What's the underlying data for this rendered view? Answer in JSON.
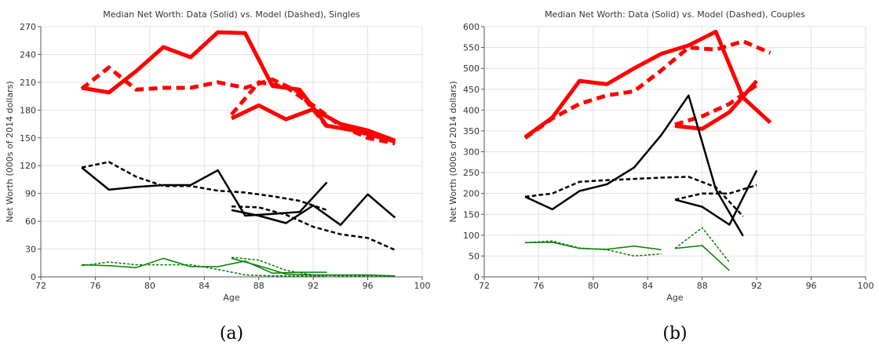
{
  "captions": [
    "(a)",
    "(b)"
  ],
  "colors": {
    "red": "#ff0000",
    "black": "#000000",
    "green": "#008000"
  },
  "chart_data": [
    {
      "type": "line",
      "title": "Median Net Worth: Data (Solid) vs. Model (Dashed), Singles",
      "xlabel": "Age",
      "ylabel": "Net Worth (000s of 2014 dollars)",
      "xlim": [
        72,
        100
      ],
      "ylim": [
        0,
        270
      ],
      "xticks": [
        72,
        76,
        80,
        84,
        88,
        92,
        96,
        100
      ],
      "yticks": [
        0,
        30,
        60,
        90,
        120,
        150,
        180,
        210,
        240,
        270
      ],
      "grid": true,
      "series": [
        {
          "color": "red",
          "style": "solid",
          "width": 5,
          "x": [
            75,
            77,
            79,
            81,
            83,
            85,
            87,
            89,
            91,
            93,
            95,
            98
          ],
          "y": [
            204,
            199,
            222,
            248,
            237,
            264,
            263,
            206,
            202,
            163,
            158,
            146
          ]
        },
        {
          "color": "red",
          "style": "dashed",
          "width": 5,
          "x": [
            75,
            77,
            79,
            81,
            83,
            85,
            87,
            89,
            91,
            93
          ],
          "y": [
            203,
            226,
            202,
            204,
            204,
            210,
            204,
            213,
            199,
            162
          ]
        },
        {
          "color": "red",
          "style": "solid",
          "width": 5,
          "x": [
            86,
            88,
            90,
            92,
            94,
            96,
            98
          ],
          "y": [
            171,
            185,
            170,
            181,
            165,
            158,
            147
          ]
        },
        {
          "color": "red",
          "style": "dashed",
          "width": 5,
          "x": [
            86,
            88,
            90,
            92,
            94,
            96,
            98
          ],
          "y": [
            175,
            210,
            205,
            185,
            163,
            150,
            144
          ]
        },
        {
          "color": "black",
          "style": "solid",
          "width": 2.5,
          "x": [
            75,
            77,
            79,
            81,
            83,
            85,
            87,
            89,
            91,
            93
          ],
          "y": [
            118,
            94,
            97,
            99,
            99,
            115,
            66,
            68,
            70,
            102
          ]
        },
        {
          "color": "black",
          "style": "dashed",
          "width": 2.5,
          "x": [
            75,
            77,
            79,
            81,
            83,
            85,
            87,
            89,
            91,
            93
          ],
          "y": [
            118,
            124,
            108,
            98,
            98,
            93,
            91,
            87,
            82,
            72
          ]
        },
        {
          "color": "black",
          "style": "solid",
          "width": 2.5,
          "x": [
            86,
            88,
            90,
            92,
            94,
            96,
            98
          ],
          "y": [
            72,
            66,
            58,
            77,
            56,
            89,
            64
          ]
        },
        {
          "color": "black",
          "style": "dashed",
          "width": 2.5,
          "x": [
            86,
            88,
            90,
            92,
            94,
            96,
            98
          ],
          "y": [
            76,
            75,
            67,
            54,
            46,
            42,
            29
          ]
        },
        {
          "color": "green",
          "style": "solid",
          "width": 1.5,
          "x": [
            75,
            77,
            79,
            81,
            83,
            85,
            87,
            89,
            91,
            93
          ],
          "y": [
            13,
            12,
            10,
            20,
            11,
            11,
            17,
            4,
            5,
            5
          ]
        },
        {
          "color": "green",
          "style": "dashed",
          "width": 1.5,
          "x": [
            75,
            77,
            79,
            81,
            83,
            85,
            87,
            89,
            91,
            93
          ],
          "y": [
            12,
            16,
            13,
            13,
            13,
            8,
            2,
            1,
            1,
            1
          ]
        },
        {
          "color": "green",
          "style": "solid",
          "width": 1.5,
          "x": [
            86,
            88,
            90,
            92,
            94,
            96,
            98
          ],
          "y": [
            20,
            12,
            3,
            2,
            2,
            2,
            1
          ]
        },
        {
          "color": "green",
          "style": "dashed",
          "width": 1.5,
          "x": [
            86,
            88,
            90,
            92,
            94,
            96,
            98
          ],
          "y": [
            21,
            18,
            7,
            2,
            1,
            1,
            1
          ]
        }
      ]
    },
    {
      "type": "line",
      "title": "Median Net Worth: Data (Solid) vs. Model (Dashed), Couples",
      "xlabel": "Age",
      "ylabel": "Net Worth (000s of 2014 dollars)",
      "xlim": [
        72,
        100
      ],
      "ylim": [
        0,
        600
      ],
      "xticks": [
        72,
        76,
        80,
        84,
        88,
        92,
        96,
        100
      ],
      "yticks": [
        0,
        50,
        100,
        150,
        200,
        250,
        300,
        350,
        400,
        450,
        500,
        550,
        600
      ],
      "grid": true,
      "series": [
        {
          "color": "red",
          "style": "solid",
          "width": 5,
          "x": [
            75,
            77,
            79,
            81,
            83,
            85,
            87,
            89,
            91,
            93
          ],
          "y": [
            335,
            382,
            470,
            462,
            500,
            535,
            555,
            588,
            430,
            370
          ]
        },
        {
          "color": "red",
          "style": "dashed",
          "width": 5,
          "x": [
            75,
            77,
            79,
            81,
            83,
            85,
            87,
            89,
            91,
            93
          ],
          "y": [
            333,
            380,
            415,
            435,
            445,
            495,
            550,
            545,
            565,
            537
          ]
        },
        {
          "color": "red",
          "style": "solid",
          "width": 5,
          "x": [
            86,
            88,
            90,
            92
          ],
          "y": [
            362,
            355,
            395,
            470
          ]
        },
        {
          "color": "red",
          "style": "dashed",
          "width": 5,
          "x": [
            86,
            88,
            90,
            92
          ],
          "y": [
            365,
            385,
            415,
            460
          ]
        },
        {
          "color": "black",
          "style": "solid",
          "width": 2.5,
          "x": [
            75,
            77,
            79,
            81,
            83,
            85,
            87,
            89,
            91
          ],
          "y": [
            192,
            162,
            206,
            222,
            262,
            340,
            435,
            210,
            98
          ]
        },
        {
          "color": "black",
          "style": "dashed",
          "width": 2.5,
          "x": [
            75,
            77,
            79,
            81,
            83,
            85,
            87,
            89,
            91
          ],
          "y": [
            192,
            200,
            228,
            232,
            235,
            238,
            240,
            215,
            145
          ]
        },
        {
          "color": "black",
          "style": "solid",
          "width": 2.5,
          "x": [
            86,
            88,
            90,
            92
          ],
          "y": [
            185,
            168,
            125,
            255
          ]
        },
        {
          "color": "black",
          "style": "dashed",
          "width": 2.5,
          "x": [
            86,
            88,
            90,
            92
          ],
          "y": [
            185,
            200,
            200,
            220
          ]
        },
        {
          "color": "green",
          "style": "solid",
          "width": 1.5,
          "x": [
            75,
            77,
            79,
            81,
            83,
            85
          ],
          "y": [
            82,
            83,
            68,
            66,
            74,
            65
          ]
        },
        {
          "color": "green",
          "style": "dashed",
          "width": 1.5,
          "x": [
            75,
            77,
            79,
            81,
            83,
            85
          ],
          "y": [
            82,
            86,
            69,
            65,
            50,
            55
          ]
        },
        {
          "color": "green",
          "style": "solid",
          "width": 1.5,
          "x": [
            86,
            88,
            90
          ],
          "y": [
            68,
            75,
            15
          ]
        },
        {
          "color": "green",
          "style": "dashed",
          "width": 1.5,
          "x": [
            86,
            88,
            90
          ],
          "y": [
            68,
            118,
            35
          ]
        }
      ]
    }
  ]
}
